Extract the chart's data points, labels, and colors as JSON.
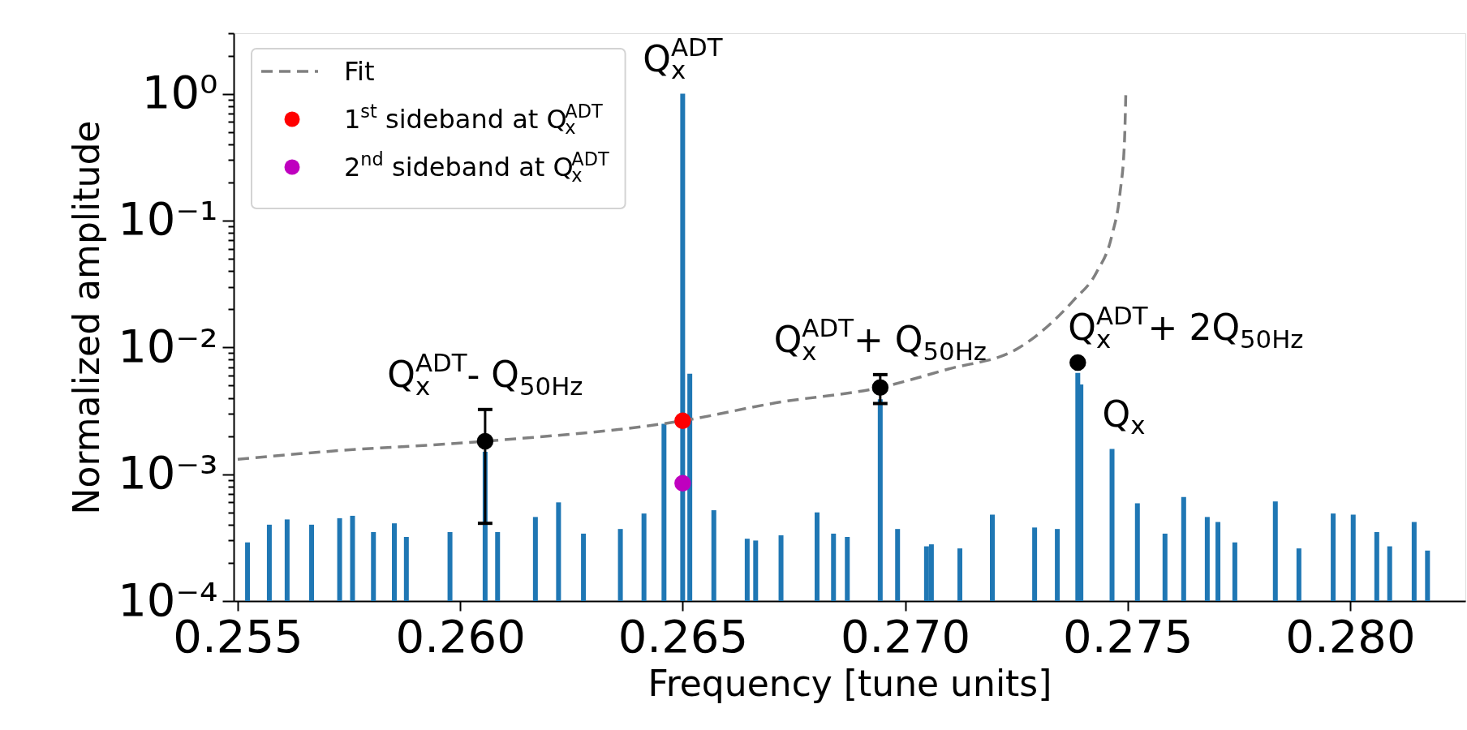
{
  "chart_data": {
    "type": "bar",
    "xlabel": "Frequency [tune units]",
    "ylabel": "Normalized amplitude",
    "log": "y",
    "grid": false,
    "legend": "top left",
    "xlim": [
      0.255,
      0.2825
    ],
    "ylim": [
      0.0001,
      3
    ],
    "xticks": [
      {
        "value": 0.255,
        "label": "0.255"
      },
      {
        "value": 0.26,
        "label": "0.260"
      },
      {
        "value": 0.265,
        "label": "0.265"
      },
      {
        "value": 0.27,
        "label": "0.270"
      },
      {
        "value": 0.275,
        "label": "0.275"
      },
      {
        "value": 0.28,
        "label": "0.280"
      }
    ],
    "yticks": [
      {
        "value": 0.0001,
        "label": "10⁻⁴"
      },
      {
        "value": 0.0002,
        "label": null
      },
      {
        "value": 0.0003,
        "label": null
      },
      {
        "value": 0.0004,
        "label": null
      },
      {
        "value": 0.0005,
        "label": null
      },
      {
        "value": 0.0006,
        "label": null
      },
      {
        "value": 0.0007,
        "label": null
      },
      {
        "value": 0.0008,
        "label": null
      },
      {
        "value": 0.0009,
        "label": null
      },
      {
        "value": 0.001,
        "label": "10⁻³"
      },
      {
        "value": 0.002,
        "label": null
      },
      {
        "value": 0.003,
        "label": null
      },
      {
        "value": 0.004,
        "label": null
      },
      {
        "value": 0.005,
        "label": null
      },
      {
        "value": 0.006,
        "label": null
      },
      {
        "value": 0.007,
        "label": null
      },
      {
        "value": 0.008,
        "label": null
      },
      {
        "value": 0.009,
        "label": null
      },
      {
        "value": 0.01,
        "label": "10⁻²"
      },
      {
        "value": 0.02,
        "label": null
      },
      {
        "value": 0.03,
        "label": null
      },
      {
        "value": 0.04,
        "label": null
      },
      {
        "value": 0.05,
        "label": null
      },
      {
        "value": 0.06,
        "label": null
      },
      {
        "value": 0.07,
        "label": null
      },
      {
        "value": 0.08,
        "label": null
      },
      {
        "value": 0.09,
        "label": null
      },
      {
        "value": 0.1,
        "label": "10⁻¹"
      },
      {
        "value": 0.2,
        "label": null
      },
      {
        "value": 0.3,
        "label": null
      },
      {
        "value": 0.4,
        "label": null
      },
      {
        "value": 0.5,
        "label": null
      },
      {
        "value": 0.6,
        "label": null
      },
      {
        "value": 0.7,
        "label": null
      },
      {
        "value": 0.8,
        "label": null
      },
      {
        "value": 0.9,
        "label": null
      },
      {
        "value": 1,
        "label": "10⁰"
      },
      {
        "value": 2,
        "label": null
      },
      {
        "value": 3,
        "label": null
      }
    ],
    "annotations": [
      {
        "text": "Q$_{x}$$^{ADT}$",
        "x": 0.265,
        "y": 1.0
      },
      {
        "text": "Q$_{x}$$^{ADT}$- Q$_{50Hz}$",
        "x": 0.26056,
        "y": 0.00324
      },
      {
        "text": "Q$_{x}$$^{ADT}$+ Q$_{50Hz}$",
        "x": 0.26944,
        "y": 0.0061
      },
      {
        "text": "Q$_{x}$$^{ADT}$+ 2Q$_{50Hz}$",
        "x": 0.27388,
        "y": 0.0076
      },
      {
        "text": "Q$_{x}$",
        "x": 0.27465,
        "y": 0.00158
      }
    ],
    "series": [
      {
        "color": "#1f77b4",
        "x": [
          0.25522,
          0.25571,
          0.25611,
          0.25666,
          0.25729,
          0.25758,
          0.25805,
          0.25852,
          0.25879,
          0.25977,
          0.26056,
          0.26084,
          0.26169,
          0.26221,
          0.26277,
          0.2636,
          0.26413,
          0.26458,
          0.265,
          0.26516,
          0.2657,
          0.26645,
          0.26664,
          0.26721,
          0.26802,
          0.26839,
          0.2687,
          0.26944,
          0.26983,
          0.27048,
          0.27059,
          0.27123,
          0.27196,
          0.27291,
          0.27342,
          0.27388,
          0.27395,
          0.27465,
          0.27522,
          0.27584,
          0.27626,
          0.27679,
          0.27703,
          0.27741,
          0.27832,
          0.27885,
          0.27962,
          0.28007,
          0.2806,
          0.28089,
          0.28144,
          0.28174
        ],
        "values": [
          0.00029,
          0.0004,
          0.00044,
          0.0004,
          0.00045,
          0.00047,
          0.00035,
          0.00041,
          0.00032,
          0.00035,
          0.0015,
          0.00035,
          0.00046,
          0.0006,
          0.00034,
          0.00037,
          0.00049,
          0.0025,
          1.0,
          0.0062,
          0.00052,
          0.00031,
          0.0003,
          0.00033,
          0.0005,
          0.00034,
          0.00032,
          0.0039,
          0.00037,
          0.00027,
          0.00028,
          0.00026,
          0.00048,
          0.00038,
          0.00037,
          0.0063,
          0.0051,
          0.00158,
          0.00059,
          0.00034,
          0.00066,
          0.00046,
          0.00042,
          0.00029,
          0.00061,
          0.00026,
          0.00049,
          0.00048,
          0.00035,
          0.00027,
          0.00042,
          0.00025
        ]
      },
      {
        "type": "line",
        "name": "Fit",
        "color": "#808080",
        "line_style": "dashed",
        "marker": "none",
        "x": [
          0.255,
          0.25689,
          0.26056,
          0.265,
          0.2671,
          0.26944,
          0.27097,
          0.27252,
          0.27378,
          0.2743,
          0.27465,
          0.27483,
          0.27493,
          0.27496
        ],
        "values": [
          0.00131,
          0.0015,
          0.00182,
          0.00264,
          0.00366,
          0.00483,
          0.00675,
          0.00975,
          0.0234,
          0.039,
          0.077,
          0.166,
          0.424,
          1.03
        ]
      },
      {
        "type": "scatter",
        "name": "1$^{st}$ sideband at Q$_{x}$$^{ADT}$",
        "color": "#ff0000",
        "marker": "circle",
        "x": [
          0.265
        ],
        "values": [
          0.00264
        ]
      },
      {
        "type": "scatter",
        "name": "2$^{nd}$ sideband at Q$_{x}$$^{ADT}$",
        "color": "#bf00bf",
        "marker": "circle",
        "x": [
          0.265
        ],
        "values": [
          0.00085
        ]
      },
      {
        "type": "scatter",
        "color": "#000000",
        "marker": "circle",
        "x": [
          0.26056,
          0.26944,
          0.27388
        ],
        "values": [
          0.00182,
          0.00483,
          0.0076
        ],
        "errors": [
          [
            0.00041,
            0.00324
          ],
          [
            0.00361,
            0.0061
          ],
          null
        ]
      }
    ]
  }
}
